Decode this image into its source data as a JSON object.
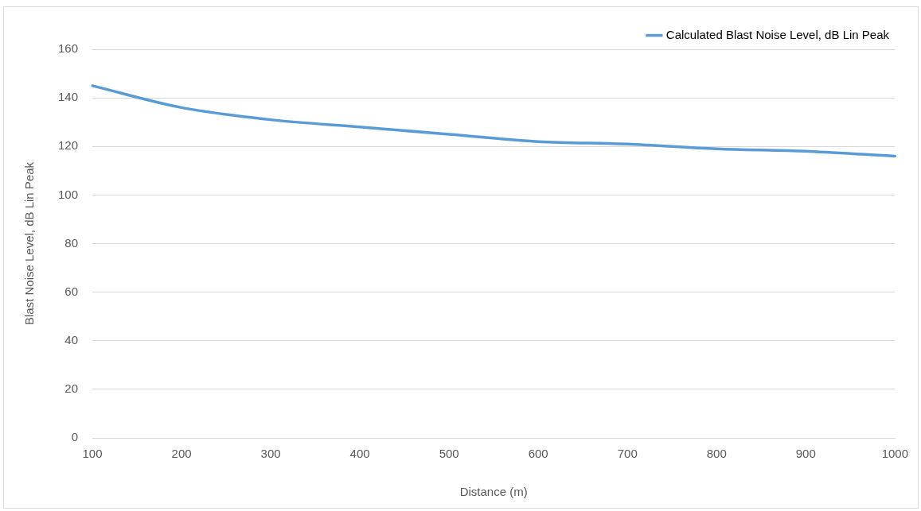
{
  "chart_data": {
    "type": "line",
    "xlabel": "Distance (m)",
    "ylabel": "Blast Noise Level, dB Lin Peak",
    "categories": [
      "100",
      "200",
      "300",
      "400",
      "500",
      "600",
      "700",
      "800",
      "900",
      "1000"
    ],
    "series": [
      {
        "name": "Calculated Blast Noise Level, dB Lin Peak",
        "color": "#5b9bd5",
        "values": [
          145,
          136,
          131,
          128,
          125,
          122,
          121,
          119,
          118,
          116
        ]
      }
    ],
    "ylim": [
      0,
      160
    ],
    "yticks": [
      0,
      20,
      40,
      60,
      80,
      100,
      120,
      140,
      160
    ],
    "grid": "y",
    "legend": "top right",
    "marker": "none",
    "line_style": "solid"
  }
}
